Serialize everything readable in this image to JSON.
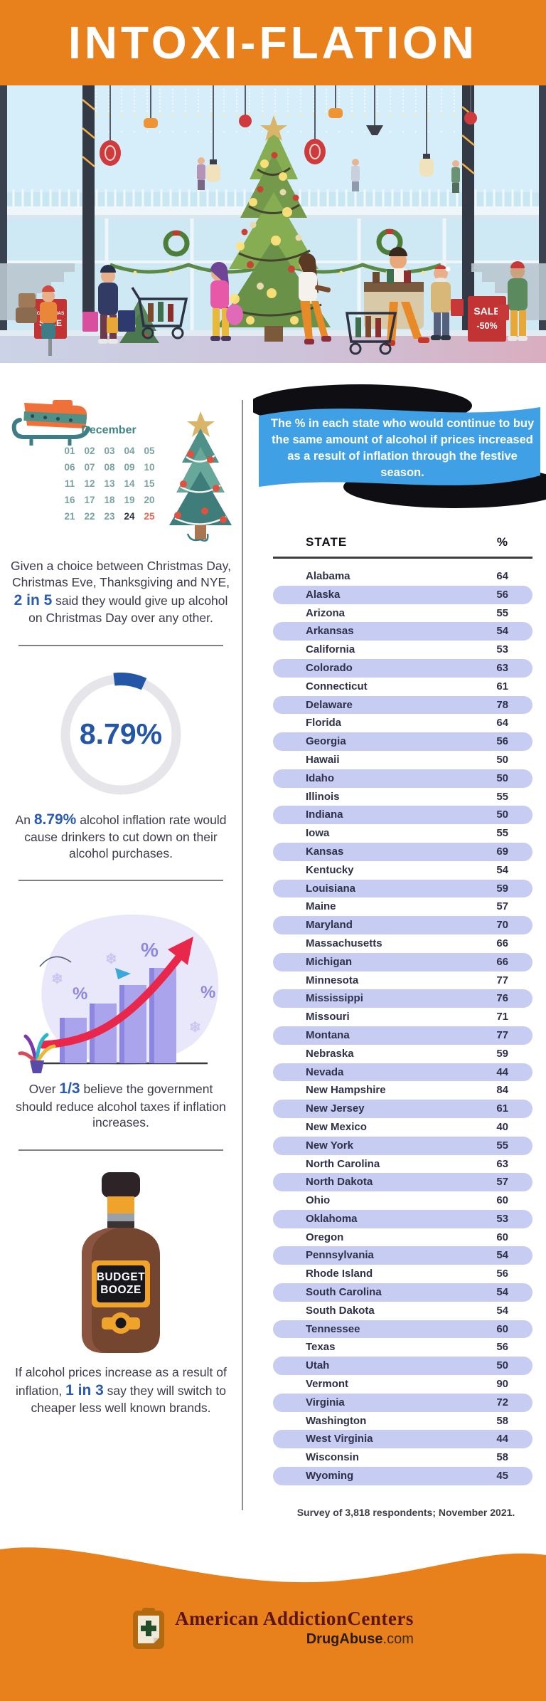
{
  "header": {
    "title": "INTOXI-FLATION",
    "accent_color": "#e8811c"
  },
  "hero": {
    "sale_sign_left_line1": "CHRISTMAS",
    "sale_sign_left_line2": "SALE",
    "sale_sign_right_line1": "SALE",
    "sale_sign_right_line2": "-50%"
  },
  "calendar": {
    "month": "December",
    "days": [
      "01",
      "02",
      "03",
      "04",
      "05",
      "06",
      "07",
      "08",
      "09",
      "10",
      "11",
      "12",
      "13",
      "14",
      "15",
      "16",
      "17",
      "18",
      "19",
      "20",
      "21",
      "22",
      "23",
      "24",
      "25"
    ],
    "bold_day": "24",
    "red_day": "25"
  },
  "stats": {
    "s1": {
      "before": "Given a choice between Christmas Day, Christmas Eve, Thanksgiving and NYE, ",
      "accent": "2 in 5",
      "after": " said they would give up alcohol on Christmas Day over any other."
    },
    "donut": {
      "percent": 8.79,
      "label": "8.79%"
    },
    "s2": {
      "before": "An ",
      "accent": "8.79%",
      "after": " alcohol inflation rate would cause drinkers to cut down on their alcohol purchases."
    },
    "s3": {
      "before": "Over ",
      "accent": "1/3",
      "after": " believe the government should reduce alcohol taxes if inflation increases."
    },
    "s4": {
      "before": "If alcohol prices increase as a result of inflation, ",
      "accent": "1 in 3",
      "after": " say they will switch to cheaper less well known brands."
    }
  },
  "bottle": {
    "label": "BUDGET BOOZE"
  },
  "callout": {
    "text": "The % in each state who would continue to buy the same amount of alcohol if prices increased as a result of inflation through the festive season.",
    "bg_color": "#3fa0e6"
  },
  "table": {
    "col_state": "STATE",
    "col_value": "%",
    "rows": [
      {
        "state": "Alabama",
        "value": 64
      },
      {
        "state": "Alaska",
        "value": 56
      },
      {
        "state": "Arizona",
        "value": 55
      },
      {
        "state": "Arkansas",
        "value": 54
      },
      {
        "state": "California",
        "value": 53
      },
      {
        "state": "Colorado",
        "value": 63
      },
      {
        "state": "Connecticut",
        "value": 61
      },
      {
        "state": "Delaware",
        "value": 78
      },
      {
        "state": "Florida",
        "value": 64
      },
      {
        "state": "Georgia",
        "value": 56
      },
      {
        "state": "Hawaii",
        "value": 50
      },
      {
        "state": "Idaho",
        "value": 50
      },
      {
        "state": "Illinois",
        "value": 55
      },
      {
        "state": "Indiana",
        "value": 50
      },
      {
        "state": "Iowa",
        "value": 55
      },
      {
        "state": "Kansas",
        "value": 69
      },
      {
        "state": "Kentucky",
        "value": 54
      },
      {
        "state": "Louisiana",
        "value": 59
      },
      {
        "state": "Maine",
        "value": 57
      },
      {
        "state": "Maryland",
        "value": 70
      },
      {
        "state": "Massachusetts",
        "value": 66
      },
      {
        "state": "Michigan",
        "value": 66
      },
      {
        "state": "Minnesota",
        "value": 77
      },
      {
        "state": "Mississippi",
        "value": 76
      },
      {
        "state": "Missouri",
        "value": 71
      },
      {
        "state": "Montana",
        "value": 77
      },
      {
        "state": "Nebraska",
        "value": 59
      },
      {
        "state": "Nevada",
        "value": 44
      },
      {
        "state": "New Hampshire",
        "value": 84
      },
      {
        "state": "New Jersey",
        "value": 61
      },
      {
        "state": "New Mexico",
        "value": 40
      },
      {
        "state": "New York",
        "value": 55
      },
      {
        "state": "North Carolina",
        "value": 63
      },
      {
        "state": "North Dakota",
        "value": 57
      },
      {
        "state": "Ohio",
        "value": 60
      },
      {
        "state": "Oklahoma",
        "value": 53
      },
      {
        "state": "Oregon",
        "value": 60
      },
      {
        "state": "Pennsylvania",
        "value": 54
      },
      {
        "state": "Rhode Island",
        "value": 56
      },
      {
        "state": "South Carolina",
        "value": 54
      },
      {
        "state": "South Dakota",
        "value": 54
      },
      {
        "state": "Tennessee",
        "value": 60
      },
      {
        "state": "Texas",
        "value": 56
      },
      {
        "state": "Utah",
        "value": 50
      },
      {
        "state": "Vermont",
        "value": 90
      },
      {
        "state": "Virginia",
        "value": 72
      },
      {
        "state": "Washington",
        "value": 58
      },
      {
        "state": "West Virginia",
        "value": 44
      },
      {
        "state": "Wisconsin",
        "value": 58
      },
      {
        "state": "Wyoming",
        "value": 45
      }
    ],
    "footnote": "Survey of 3,818 respondents; November 2021."
  },
  "footer": {
    "brand": "American AddictionCenters",
    "site_bold": "DrugAbuse",
    "site_suffix": ".com"
  },
  "chart_data": [
    {
      "type": "table",
      "title": "The % in each state who would continue to buy the same amount of alcohol if prices increased as a result of inflation through the festive season.",
      "columns": [
        "STATE",
        "%"
      ],
      "categories": [
        "Alabama",
        "Alaska",
        "Arizona",
        "Arkansas",
        "California",
        "Colorado",
        "Connecticut",
        "Delaware",
        "Florida",
        "Georgia",
        "Hawaii",
        "Idaho",
        "Illinois",
        "Indiana",
        "Iowa",
        "Kansas",
        "Kentucky",
        "Louisiana",
        "Maine",
        "Maryland",
        "Massachusetts",
        "Michigan",
        "Minnesota",
        "Mississippi",
        "Missouri",
        "Montana",
        "Nebraska",
        "Nevada",
        "New Hampshire",
        "New Jersey",
        "New Mexico",
        "New York",
        "North Carolina",
        "North Dakota",
        "Ohio",
        "Oklahoma",
        "Oregon",
        "Pennsylvania",
        "Rhode Island",
        "South Carolina",
        "South Dakota",
        "Tennessee",
        "Texas",
        "Utah",
        "Vermont",
        "Virginia",
        "Washington",
        "West Virginia",
        "Wisconsin",
        "Wyoming"
      ],
      "values": [
        64,
        56,
        55,
        54,
        53,
        63,
        61,
        78,
        64,
        56,
        50,
        50,
        55,
        50,
        55,
        69,
        54,
        59,
        57,
        70,
        66,
        66,
        77,
        76,
        71,
        77,
        59,
        44,
        84,
        61,
        40,
        55,
        63,
        57,
        60,
        53,
        60,
        54,
        56,
        54,
        54,
        60,
        56,
        50,
        90,
        72,
        58,
        44,
        58,
        45
      ]
    },
    {
      "type": "pie",
      "title": "Alcohol inflation rate that would cause drinkers to cut down",
      "categories": [
        "inflation rate"
      ],
      "values": [
        8.79
      ],
      "unit": "%"
    }
  ]
}
